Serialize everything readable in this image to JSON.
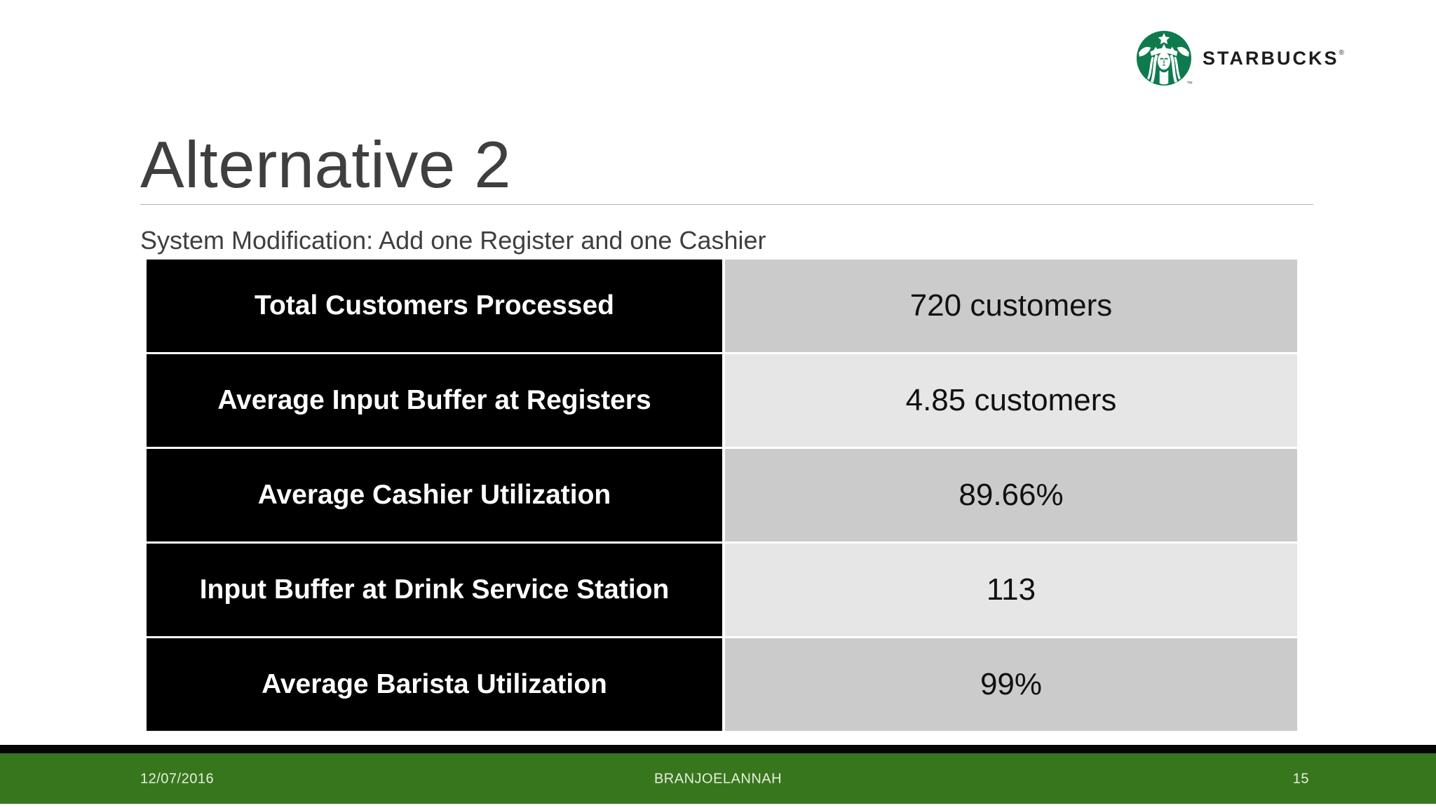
{
  "slide": {
    "title": "Alternative 2",
    "subtitle": "System Modification: Add one Register and one Cashier"
  },
  "logo": {
    "brand": "STARBUCKS",
    "registered_mark": "®",
    "siren_trademark": "™",
    "siren_green": "#0f7a4e",
    "wordmark_color": "#1d1d1d"
  },
  "table": {
    "rows": [
      {
        "label": "Total Customers Processed",
        "value": "720 customers"
      },
      {
        "label": "Average Input Buffer at Registers",
        "value": "4.85 customers"
      },
      {
        "label": "Average Cashier Utilization",
        "value": "89.66%"
      },
      {
        "label": "Input Buffer at Drink Service Station",
        "value": "113"
      },
      {
        "label": "Average Barista Utilization",
        "value": "99%"
      }
    ],
    "label_bg": "#000000",
    "label_text_color": "#ffffff",
    "value_row_colors": [
      "#cbcbcb",
      "#e7e6e6"
    ]
  },
  "footer": {
    "date": "12/07/2016",
    "author": "BRANJOELANNAH",
    "page_number": "15",
    "bar_color": "#38761d",
    "stripe_color": "#050505"
  }
}
